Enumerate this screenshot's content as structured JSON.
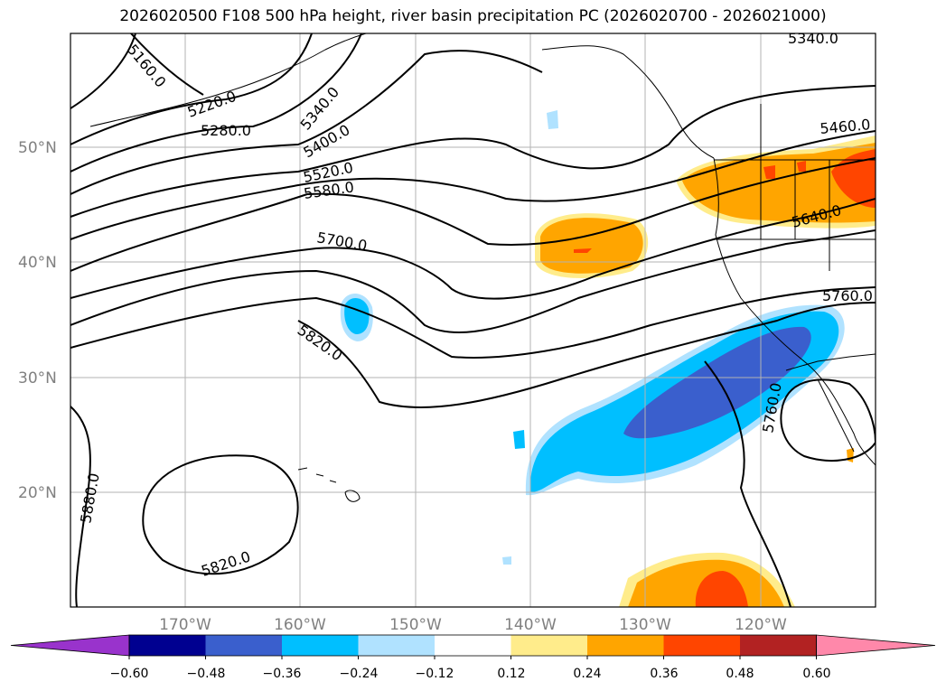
{
  "title": "2026020500 F108 500 hPa height, river basin precipitation PC (2026020700 - 2026021000)",
  "map": {
    "lon_range": [
      -180,
      -110
    ],
    "lat_range": [
      10,
      60
    ],
    "lat_ticks": [
      "50°N",
      "40°N",
      "30°N",
      "20°N"
    ],
    "lon_ticks": [
      "170°W",
      "160°W",
      "150°W",
      "140°W",
      "130°W",
      "120°W"
    ],
    "grid": true,
    "contour_color": "#000000",
    "contour_labels": [
      "5160.0",
      "5220.0",
      "5280.0",
      "5340.0",
      "5400.0",
      "5520.0",
      "5580.0",
      "5700.0",
      "5820.0",
      "5880.0",
      "5820.0",
      "5340.0",
      "5460.0",
      "5640.0",
      "5760.0",
      "5760.0"
    ]
  },
  "colorbar": {
    "ticks": [
      "−0.60",
      "−0.48",
      "−0.36",
      "−0.24",
      "−0.12",
      "0.12",
      "0.24",
      "0.36",
      "0.48",
      "0.60"
    ],
    "colors": [
      "#9933cc",
      "#000090",
      "#3a5fcd",
      "#00bfff",
      "#b0e2ff",
      "#ffffff",
      "#ffec8b",
      "#ffa500",
      "#ff4500",
      "#b22222",
      "#ff88aa"
    ]
  }
}
